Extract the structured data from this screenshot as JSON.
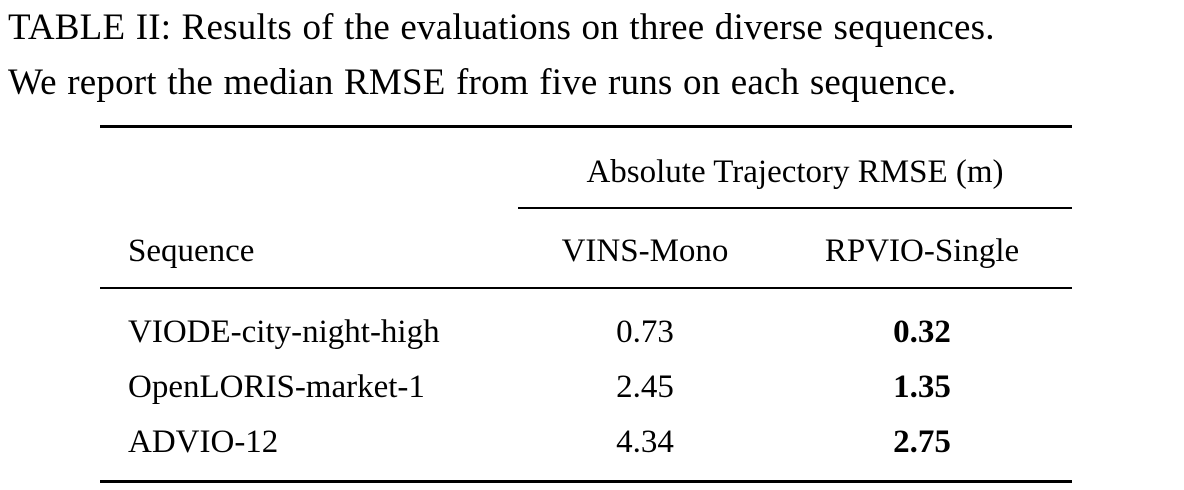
{
  "caption": {
    "line1": "TABLE II: Results of the evaluations on three diverse sequences.",
    "line2": "We report the median RMSE from five runs on each sequence."
  },
  "table": {
    "group_header": "Absolute Trajectory RMSE (m)",
    "columns": [
      "Sequence",
      "VINS-Mono",
      "RPVIO-Single"
    ],
    "rows": [
      {
        "sequence": "VIODE-city-night-high",
        "vins_mono": "0.73",
        "rpvio_single": "0.32"
      },
      {
        "sequence": "OpenLORIS-market-1",
        "vins_mono": "2.45",
        "rpvio_single": "1.35"
      },
      {
        "sequence": "ADVIO-12",
        "vins_mono": "4.34",
        "rpvio_single": "2.75"
      }
    ]
  }
}
